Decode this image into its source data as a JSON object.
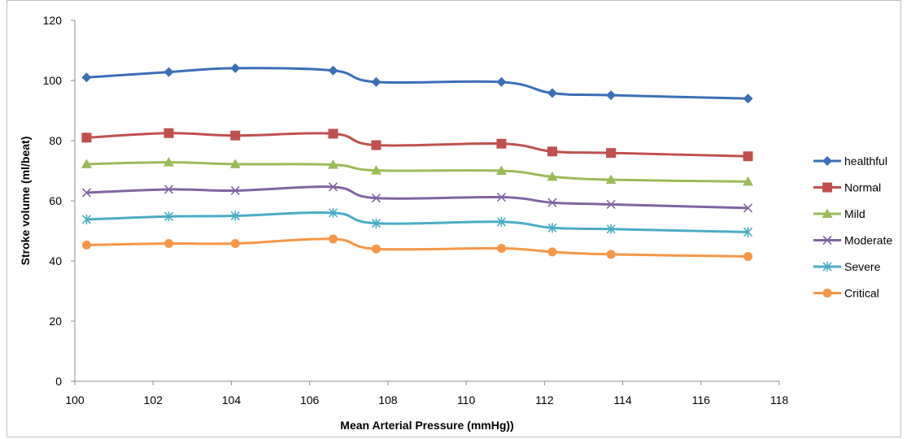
{
  "chart_data": {
    "type": "line",
    "xlabel": "Mean Arterial Pressure (mmHg))",
    "ylabel": "Stroke volume (ml/beat)",
    "xlim": [
      100,
      118
    ],
    "ylim": [
      0,
      120
    ],
    "xticks": [
      100,
      102,
      104,
      106,
      108,
      110,
      112,
      114,
      116,
      118
    ],
    "yticks": [
      0,
      20,
      40,
      60,
      80,
      100,
      120
    ],
    "grid": false,
    "legend_position": "right",
    "x": [
      100.3,
      102.4,
      104.1,
      106.6,
      107.7,
      110.9,
      112.2,
      113.7,
      117.2
    ],
    "series": [
      {
        "name": "healthful",
        "color": "#3a6fb7",
        "marker": "diamond",
        "values": [
          101,
          102.8,
          104.1,
          103.3,
          99.5,
          99.5,
          95.8,
          95.1,
          94
        ]
      },
      {
        "name": "Normal",
        "color": "#c0504d",
        "marker": "square",
        "values": [
          81,
          82.5,
          81.7,
          82.3,
          78.5,
          79,
          76.4,
          75.9,
          74.8
        ]
      },
      {
        "name": "Mild",
        "color": "#9bbb59",
        "marker": "triangle",
        "values": [
          72.2,
          72.8,
          72.2,
          72,
          70.1,
          70,
          68,
          67,
          66.4
        ]
      },
      {
        "name": "Moderate",
        "color": "#8064a2",
        "marker": "x",
        "values": [
          62.7,
          63.8,
          63.4,
          64.6,
          60.9,
          61.2,
          59.4,
          58.8,
          57.6
        ]
      },
      {
        "name": "Severe",
        "color": "#4bacc6",
        "marker": "star",
        "values": [
          53.8,
          54.8,
          55,
          56,
          52.5,
          53,
          51,
          50.6,
          49.6
        ]
      },
      {
        "name": "Critical",
        "color": "#f79646",
        "marker": "circle",
        "values": [
          45.3,
          45.8,
          45.8,
          47.3,
          44,
          44.2,
          43,
          42.2,
          41.5
        ]
      }
    ]
  }
}
